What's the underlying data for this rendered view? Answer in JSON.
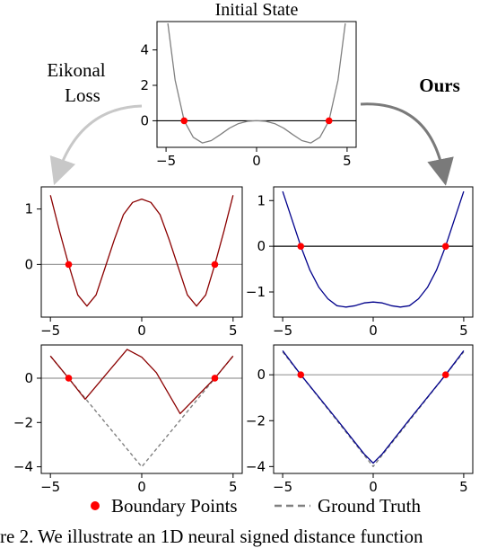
{
  "figure": {
    "initial_title": "Initial State",
    "left_method_line1": "Eikonal",
    "left_method_line2": "Loss",
    "right_method": "Ours",
    "legend": {
      "boundary_label": "Boundary Points",
      "ground_truth_label": "Ground Truth"
    },
    "caption_fragment": "re 2. We illustrate an 1D neural signed distance function",
    "colors": {
      "initial_curve": "#808080",
      "eikonal_curve": "#8b0000",
      "ours_curve": "#00008b",
      "boundary_point": "#ff0000",
      "ground_truth": "#808080",
      "zero_line_dark": "#000000",
      "zero_line_light": "#999999",
      "arrow_left": "#c8c8c8",
      "arrow_right": "#7a7a7a"
    }
  },
  "chart_data": [
    {
      "id": "initial",
      "type": "line",
      "title": "Initial State",
      "xlim": [
        -5.5,
        5.5
      ],
      "ylim": [
        -1.5,
        5.6
      ],
      "xticks": [
        "−5",
        "0",
        "5"
      ],
      "xtick_values": [
        -5,
        0,
        5
      ],
      "yticks": [
        "0",
        "2",
        "4"
      ],
      "ytick_values": [
        0,
        2,
        4
      ],
      "zero_line": "dark",
      "series": [
        {
          "role": "curve",
          "color": "initial_curve",
          "x": [
            -4.9,
            -4.5,
            -4.0,
            -3.5,
            -3.0,
            -2.5,
            -2.0,
            -1.5,
            -1.0,
            -0.5,
            0,
            0.5,
            1.0,
            1.5,
            2.0,
            2.5,
            3.0,
            3.5,
            4.0,
            4.5,
            4.9
          ],
          "y": [
            5.5,
            2.3,
            0.0,
            -0.93,
            -1.25,
            -1.12,
            -0.78,
            -0.42,
            -0.16,
            -0.03,
            0.0,
            -0.03,
            -0.16,
            -0.42,
            -0.78,
            -1.12,
            -1.25,
            -0.93,
            0.0,
            2.3,
            5.5
          ]
        }
      ],
      "boundary_points": {
        "x": [
          -4,
          4
        ],
        "y": [
          0,
          0
        ]
      }
    },
    {
      "id": "eikonal-sdf",
      "type": "line",
      "xlim": [
        -5.5,
        5.5
      ],
      "ylim": [
        -0.95,
        1.4
      ],
      "xticks": [
        "−5",
        "0",
        "5"
      ],
      "xtick_values": [
        -5,
        0,
        5
      ],
      "yticks": [
        "0",
        "1"
      ],
      "ytick_values": [
        0,
        1
      ],
      "zero_line": "light",
      "series": [
        {
          "role": "curve",
          "color": "eikonal_curve",
          "x": [
            -5.0,
            -4.5,
            -4.0,
            -3.5,
            -3.0,
            -2.5,
            -2.0,
            -1.5,
            -1.0,
            -0.5,
            0,
            0.5,
            1.0,
            1.5,
            2.0,
            2.5,
            3.0,
            3.5,
            4.0,
            4.5,
            5.0
          ],
          "y": [
            1.25,
            0.6,
            0.0,
            -0.55,
            -0.75,
            -0.55,
            -0.05,
            0.45,
            0.9,
            1.12,
            1.18,
            1.12,
            0.9,
            0.45,
            -0.05,
            -0.55,
            -0.75,
            -0.55,
            0.0,
            0.6,
            1.25
          ]
        }
      ],
      "boundary_points": {
        "x": [
          -4,
          4
        ],
        "y": [
          0,
          0
        ]
      }
    },
    {
      "id": "ours-sdf",
      "type": "line",
      "xlim": [
        -5.5,
        5.5
      ],
      "ylim": [
        -1.55,
        1.3
      ],
      "xticks": [
        "−5",
        "0",
        "5"
      ],
      "xtick_values": [
        -5,
        0,
        5
      ],
      "yticks": [
        "−1",
        "0",
        "1"
      ],
      "ytick_values": [
        -1,
        0,
        1
      ],
      "zero_line": "dark",
      "series": [
        {
          "role": "curve",
          "color": "ours_curve",
          "x": [
            -5.0,
            -4.5,
            -4.0,
            -3.5,
            -3.0,
            -2.5,
            -2.0,
            -1.5,
            -1.0,
            -0.5,
            0,
            0.5,
            1.0,
            1.5,
            2.0,
            2.5,
            3.0,
            3.5,
            4.0,
            4.5,
            5.0
          ],
          "y": [
            1.2,
            0.6,
            0.0,
            -0.52,
            -0.9,
            -1.15,
            -1.3,
            -1.33,
            -1.3,
            -1.24,
            -1.22,
            -1.24,
            -1.3,
            -1.33,
            -1.3,
            -1.15,
            -0.9,
            -0.52,
            0.0,
            0.6,
            1.2
          ]
        }
      ],
      "boundary_points": {
        "x": [
          -4,
          4
        ],
        "y": [
          0,
          0
        ]
      }
    },
    {
      "id": "eikonal-udf",
      "type": "line",
      "xlim": [
        -5.5,
        5.5
      ],
      "ylim": [
        -4.3,
        1.5
      ],
      "xticks": [
        "−5",
        "0",
        "5"
      ],
      "xtick_values": [
        -5,
        0,
        5
      ],
      "yticks": [
        "−4",
        "−2",
        "0"
      ],
      "ytick_values": [
        -4,
        -2,
        0
      ],
      "zero_line": "light",
      "series": [
        {
          "role": "ground_truth",
          "color": "ground_truth",
          "x": [
            -5,
            -4,
            0,
            4,
            5
          ],
          "y": [
            1,
            0,
            -4,
            0,
            1
          ]
        },
        {
          "role": "curve",
          "color": "eikonal_curve",
          "x": [
            -5.0,
            -4.0,
            -3.1,
            -0.8,
            0.0,
            0.8,
            2.1,
            4.0,
            5.0
          ],
          "y": [
            1.0,
            0.0,
            -0.95,
            1.3,
            0.95,
            0.25,
            -1.6,
            0.0,
            1.0
          ]
        }
      ],
      "boundary_points": {
        "x": [
          -4,
          4
        ],
        "y": [
          0,
          0
        ]
      }
    },
    {
      "id": "ours-udf",
      "type": "line",
      "xlim": [
        -5.5,
        5.5
      ],
      "ylim": [
        -4.3,
        1.3
      ],
      "xticks": [
        "−5",
        "0",
        "5"
      ],
      "xtick_values": [
        -5,
        0,
        5
      ],
      "yticks": [
        "−4",
        "−2",
        "0"
      ],
      "ytick_values": [
        -4,
        -2,
        0
      ],
      "zero_line": "light",
      "series": [
        {
          "role": "ground_truth",
          "color": "ground_truth",
          "x": [
            -5,
            -4,
            0,
            4,
            5
          ],
          "y": [
            1,
            0,
            -4,
            0,
            1
          ]
        },
        {
          "role": "curve",
          "color": "ours_curve",
          "x": [
            -5.0,
            -4.0,
            -2.0,
            -0.5,
            0.0,
            0.5,
            2.0,
            4.0,
            5.0
          ],
          "y": [
            1.05,
            0.0,
            -1.95,
            -3.45,
            -3.85,
            -3.45,
            -1.95,
            0.0,
            1.05
          ]
        }
      ],
      "boundary_points": {
        "x": [
          -4,
          4
        ],
        "y": [
          0,
          0
        ]
      }
    }
  ]
}
